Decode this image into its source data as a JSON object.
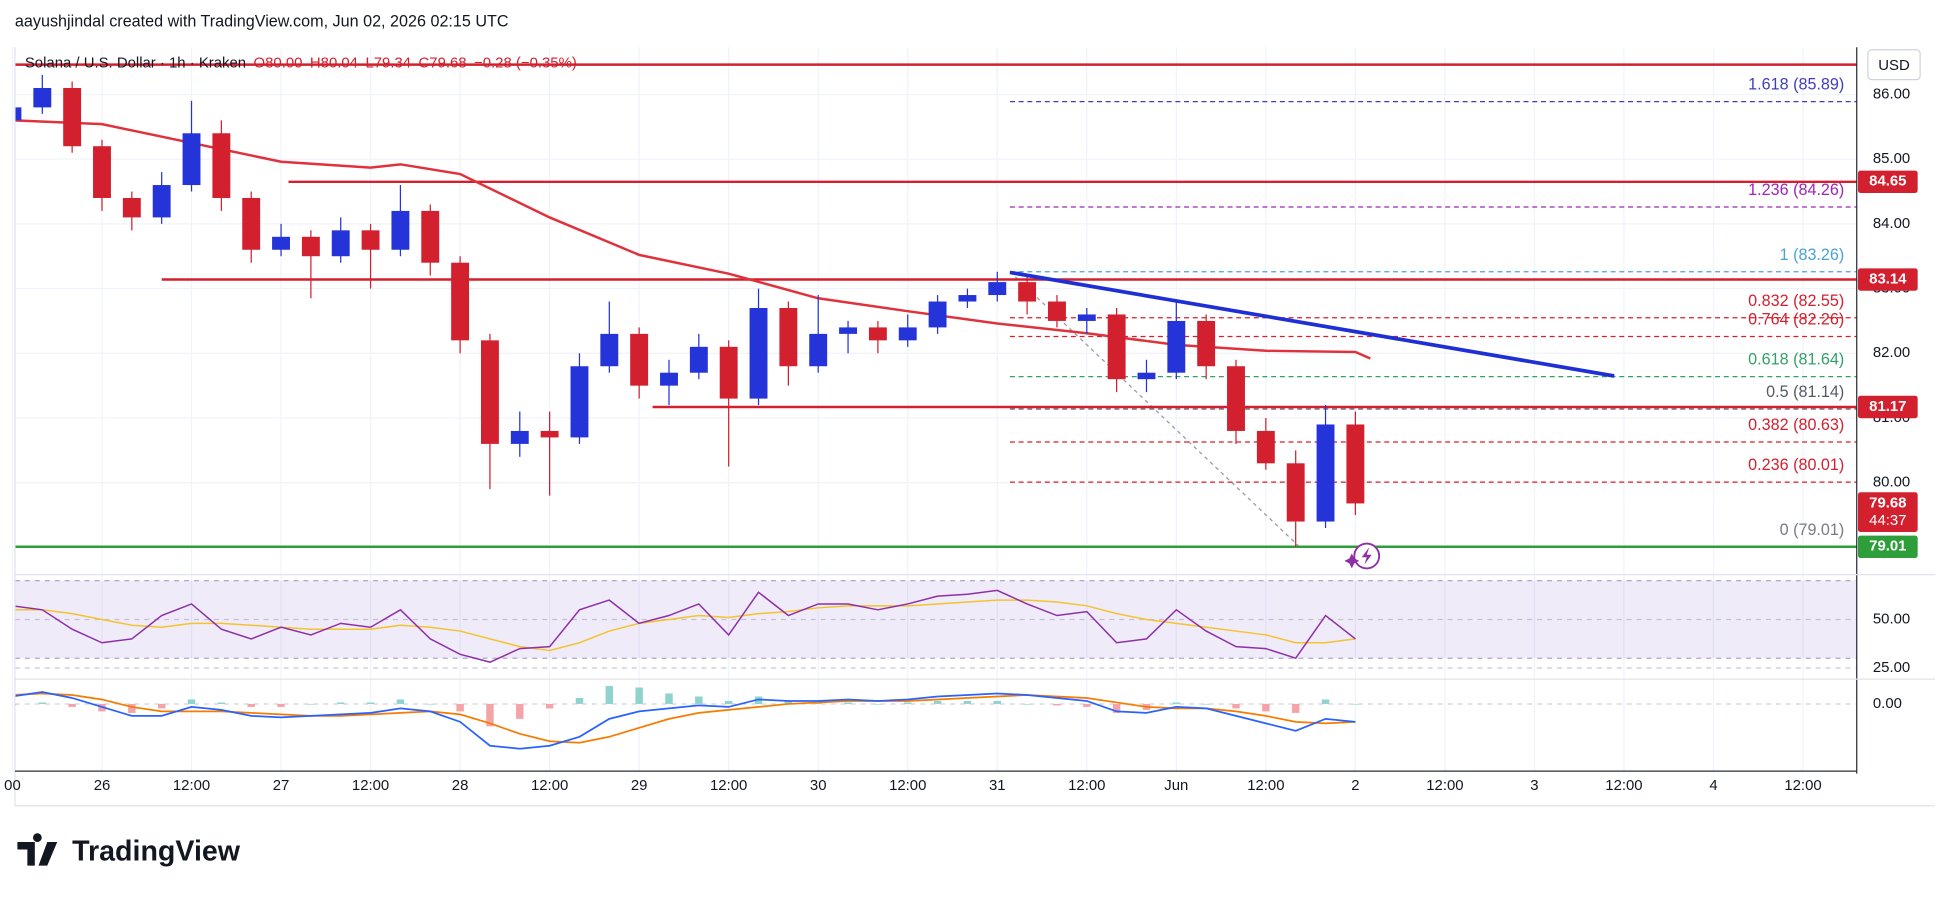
{
  "chart_data": {
    "type": "candlestick",
    "credit": "aayushjindal created with TradingView.com, Jun 02, 2026 02:15 UTC",
    "legend": {
      "symbol": "Solana / U.S. Dollar · 1h · Kraken",
      "open": "O80.00",
      "high": "H80.04",
      "low": "L79.34",
      "close": "C79.68",
      "change": "−0.28 (−0.35%)"
    },
    "currency": "USD",
    "brand": "TradingView",
    "xlim": [
      -11.67,
      235.2
    ],
    "xticks": [
      {
        "value": -12,
        "label": "00"
      },
      {
        "value": 0,
        "label": "26"
      },
      {
        "value": 12,
        "label": "12:00"
      },
      {
        "value": 24,
        "label": "27"
      },
      {
        "value": 36,
        "label": "12:00"
      },
      {
        "value": 48,
        "label": "28"
      },
      {
        "value": 60,
        "label": "12:00"
      },
      {
        "value": 72,
        "label": "29"
      },
      {
        "value": 84,
        "label": "12:00"
      },
      {
        "value": 96,
        "label": "30"
      },
      {
        "value": 108,
        "label": "12:00"
      },
      {
        "value": 120,
        "label": "31"
      },
      {
        "value": 132,
        "label": "12:00"
      },
      {
        "value": 144,
        "label": "Jun"
      },
      {
        "value": 156,
        "label": "12:00"
      },
      {
        "value": 168,
        "label": "2"
      },
      {
        "value": 180,
        "label": "12:00"
      },
      {
        "value": 192,
        "label": "3"
      },
      {
        "value": 204,
        "label": "12:00"
      },
      {
        "value": 216,
        "label": "4"
      },
      {
        "value": 228,
        "label": "12:00"
      }
    ],
    "ylim": [
      78.58,
      86.69
    ],
    "yticks": [
      {
        "value": 86,
        "label": "86.00"
      },
      {
        "value": 85,
        "label": "85.00"
      },
      {
        "value": 84,
        "label": "84.00"
      },
      {
        "value": 83,
        "label": "83.00"
      },
      {
        "value": 82,
        "label": "82.00"
      },
      {
        "value": 81,
        "label": "81.00"
      },
      {
        "value": 80,
        "label": "80.00"
      }
    ],
    "grid": true,
    "up_color": "#2434d8",
    "down_color": "#d3202f",
    "x": [
      -12,
      -8,
      -4,
      0,
      4,
      8,
      12,
      16,
      20,
      24,
      28,
      32,
      36,
      40,
      44,
      48,
      52,
      56,
      60,
      64,
      68,
      72,
      76,
      80,
      84,
      88,
      92,
      96,
      100,
      104,
      108,
      112,
      116,
      120,
      124,
      128,
      132,
      136,
      140,
      144,
      148,
      152,
      156,
      160,
      164,
      168
    ],
    "ohlc": [
      [
        85.6,
        86.27,
        85.5,
        85.8
      ],
      [
        85.8,
        86.3,
        85.7,
        86.1
      ],
      [
        86.1,
        86.2,
        85.1,
        85.2
      ],
      [
        85.2,
        85.3,
        84.2,
        84.4
      ],
      [
        84.4,
        84.5,
        83.9,
        84.1
      ],
      [
        84.1,
        84.8,
        84.0,
        84.6
      ],
      [
        84.6,
        85.9,
        84.5,
        85.4
      ],
      [
        85.4,
        85.6,
        84.2,
        84.4
      ],
      [
        84.4,
        84.5,
        83.4,
        83.6
      ],
      [
        83.6,
        84.0,
        83.5,
        83.8
      ],
      [
        83.8,
        83.9,
        82.85,
        83.5
      ],
      [
        83.5,
        84.1,
        83.4,
        83.9
      ],
      [
        83.9,
        84.0,
        83.0,
        83.6
      ],
      [
        83.6,
        84.6,
        83.5,
        84.2
      ],
      [
        84.2,
        84.3,
        83.2,
        83.4
      ],
      [
        83.4,
        83.5,
        82.0,
        82.2
      ],
      [
        82.2,
        82.3,
        79.9,
        80.6
      ],
      [
        80.6,
        81.1,
        80.4,
        80.8
      ],
      [
        80.8,
        81.1,
        79.8,
        80.7
      ],
      [
        80.7,
        82.0,
        80.6,
        81.8
      ],
      [
        81.8,
        82.8,
        81.7,
        82.3
      ],
      [
        82.3,
        82.4,
        81.3,
        81.5
      ],
      [
        81.5,
        81.9,
        81.2,
        81.7
      ],
      [
        81.7,
        82.3,
        81.6,
        82.1
      ],
      [
        82.1,
        82.2,
        80.25,
        81.3
      ],
      [
        81.3,
        83.0,
        81.2,
        82.7
      ],
      [
        82.7,
        82.8,
        81.5,
        81.8
      ],
      [
        81.8,
        82.9,
        81.7,
        82.3
      ],
      [
        82.3,
        82.5,
        82.0,
        82.4
      ],
      [
        82.4,
        82.5,
        82.0,
        82.2
      ],
      [
        82.2,
        82.6,
        82.1,
        82.4
      ],
      [
        82.4,
        82.9,
        82.3,
        82.8
      ],
      [
        82.8,
        83.0,
        82.7,
        82.9
      ],
      [
        82.9,
        83.26,
        82.8,
        83.1
      ],
      [
        83.1,
        83.2,
        82.6,
        82.8
      ],
      [
        82.8,
        82.9,
        82.4,
        82.5
      ],
      [
        82.5,
        82.7,
        82.3,
        82.6
      ],
      [
        82.6,
        82.7,
        81.4,
        81.6
      ],
      [
        81.6,
        81.9,
        81.4,
        81.7
      ],
      [
        81.7,
        82.8,
        81.6,
        82.5
      ],
      [
        82.5,
        82.6,
        81.6,
        81.8
      ],
      [
        81.8,
        81.9,
        80.6,
        80.8
      ],
      [
        80.8,
        81.0,
        80.2,
        80.3
      ],
      [
        80.3,
        80.5,
        79.01,
        79.4
      ],
      [
        79.4,
        81.2,
        79.3,
        80.9
      ],
      [
        80.9,
        81.1,
        79.5,
        79.68
      ]
    ],
    "ma": {
      "color": "#e0323c",
      "x": [
        -12,
        0,
        24,
        36,
        40,
        48,
        60,
        72,
        84,
        96,
        108,
        120,
        132,
        144,
        156,
        168,
        170
      ],
      "values": [
        85.6,
        85.54,
        84.96,
        84.87,
        84.92,
        84.77,
        84.1,
        83.52,
        83.23,
        82.85,
        82.65,
        82.46,
        82.31,
        82.13,
        82.04,
        82.02,
        81.92
      ]
    },
    "levels": [
      {
        "price": 86.46,
        "x0": -11.67,
        "color": "#d3202f"
      },
      {
        "price": 84.65,
        "x0": 25,
        "color": "#d3202f"
      },
      {
        "price": 83.14,
        "x0": 8,
        "color": "#d3202f"
      },
      {
        "price": 81.17,
        "x0": 73.8,
        "color": "#d3202f"
      },
      {
        "price": 79.01,
        "x0": -11.67,
        "color": "#2e9e3a"
      }
    ],
    "price_labels": [
      {
        "value": 84.65,
        "label": "84.65",
        "color": "#d3202f"
      },
      {
        "value": 83.14,
        "label": "83.14",
        "color": "#d3202f"
      },
      {
        "value": 81.17,
        "label": "81.17",
        "color": "#d3202f"
      },
      {
        "value": 79.68,
        "label": "79.68",
        "color": "#d3202f"
      },
      {
        "value": 79.01,
        "label": "79.01",
        "color": "#2e9e3a"
      }
    ],
    "countdown": "44:37",
    "fib": {
      "x0": 121.7,
      "levels": [
        {
          "price": 85.89,
          "label": "1.618 (85.89)",
          "color": "#3d3fbf"
        },
        {
          "price": 84.26,
          "label": "1.236 (84.26)",
          "color": "#9c27b0"
        },
        {
          "price": 83.26,
          "label": "1 (83.26)",
          "color": "#4aa3d6"
        },
        {
          "price": 82.55,
          "label": "0.832 (82.55)",
          "color": "#d3202f"
        },
        {
          "price": 82.26,
          "label": "0.764 (82.26)",
          "color": "#d3202f"
        },
        {
          "price": 81.64,
          "label": "0.618 (81.64)",
          "color": "#33a06a"
        },
        {
          "price": 81.14,
          "label": "0.5 (81.14)",
          "color": "#555b66"
        },
        {
          "price": 80.63,
          "label": "0.382 (80.63)",
          "color": "#d3202f"
        },
        {
          "price": 80.01,
          "label": "0.236 (80.01)",
          "color": "#d3202f"
        },
        {
          "price": 79.01,
          "label": "0 (79.01)",
          "color": "#787b86"
        }
      ]
    },
    "trendline": {
      "color": "#1f2fd6",
      "x": [
        121.7,
        202.7
      ],
      "values": [
        83.25,
        81.65
      ]
    },
    "rsi": {
      "ylim": [
        19.9,
        71.2
      ],
      "yticks": [
        {
          "value": 50,
          "label": "50.00"
        },
        {
          "value": 25,
          "label": "25.00"
        }
      ],
      "band": [
        30,
        70
      ],
      "color": "#8e2fa8",
      "ma_color": "#f3c430",
      "values": [
        57,
        55,
        45,
        38,
        40,
        52,
        58,
        45,
        40,
        46,
        42,
        48,
        46,
        55,
        40,
        32,
        28,
        35,
        36,
        55,
        60,
        48,
        52,
        58,
        42,
        64,
        52,
        58,
        58,
        55,
        58,
        62,
        63,
        65,
        58,
        52,
        54,
        38,
        40,
        55,
        44,
        36,
        35,
        30,
        52,
        40
      ],
      "ma": [
        55,
        55,
        53,
        50,
        47,
        46,
        48,
        48,
        47,
        46,
        45,
        45,
        45,
        47,
        46,
        44,
        40,
        36,
        34,
        38,
        44,
        48,
        50,
        52,
        51,
        53,
        54,
        56,
        57,
        57,
        57,
        58,
        59,
        60,
        60,
        59,
        57,
        53,
        50,
        48,
        46,
        44,
        42,
        38,
        38,
        40
      ]
    },
    "macd": {
      "ylim": [
        -0.45,
        0.15
      ],
      "yticks": [
        {
          "value": 0,
          "label": "0.00"
        }
      ],
      "macd_color": "#2962ff",
      "signal_color": "#f57c00",
      "hist_up": "#8fd3cf",
      "hist_down": "#f4a3a8",
      "macd": [
        0.05,
        0.08,
        0.04,
        -0.02,
        -0.08,
        -0.08,
        -0.02,
        -0.04,
        -0.08,
        -0.09,
        -0.08,
        -0.07,
        -0.06,
        -0.03,
        -0.05,
        -0.12,
        -0.28,
        -0.3,
        -0.28,
        -0.22,
        -0.1,
        -0.05,
        -0.03,
        -0.01,
        -0.02,
        0.03,
        0.02,
        0.02,
        0.03,
        0.02,
        0.03,
        0.05,
        0.06,
        0.07,
        0.06,
        0.04,
        0.02,
        -0.05,
        -0.06,
        -0.02,
        -0.03,
        -0.08,
        -0.13,
        -0.18,
        -0.1,
        -0.12
      ],
      "signal": [
        0.06,
        0.07,
        0.06,
        0.03,
        -0.02,
        -0.05,
        -0.05,
        -0.05,
        -0.06,
        -0.07,
        -0.08,
        -0.08,
        -0.07,
        -0.06,
        -0.05,
        -0.07,
        -0.13,
        -0.2,
        -0.25,
        -0.26,
        -0.22,
        -0.16,
        -0.1,
        -0.06,
        -0.04,
        -0.02,
        0.0,
        0.01,
        0.02,
        0.02,
        0.02,
        0.03,
        0.04,
        0.05,
        0.06,
        0.05,
        0.04,
        0.01,
        -0.02,
        -0.03,
        -0.03,
        -0.05,
        -0.08,
        -0.12,
        -0.13,
        -0.12
      ],
      "histogram": [
        -0.01,
        0.01,
        -0.02,
        -0.05,
        -0.06,
        -0.03,
        0.03,
        0.01,
        -0.02,
        -0.02,
        0,
        0.01,
        0.01,
        0.03,
        0,
        -0.05,
        -0.15,
        -0.1,
        -0.03,
        0.04,
        0.12,
        0.11,
        0.07,
        0.05,
        0.02,
        0.05,
        0.02,
        0.01,
        0.01,
        0,
        0.01,
        0.02,
        0.02,
        0.02,
        0,
        -0.01,
        -0.02,
        -0.06,
        -0.04,
        0.01,
        0,
        -0.03,
        -0.05,
        -0.06,
        0.03,
        0
      ]
    }
  }
}
